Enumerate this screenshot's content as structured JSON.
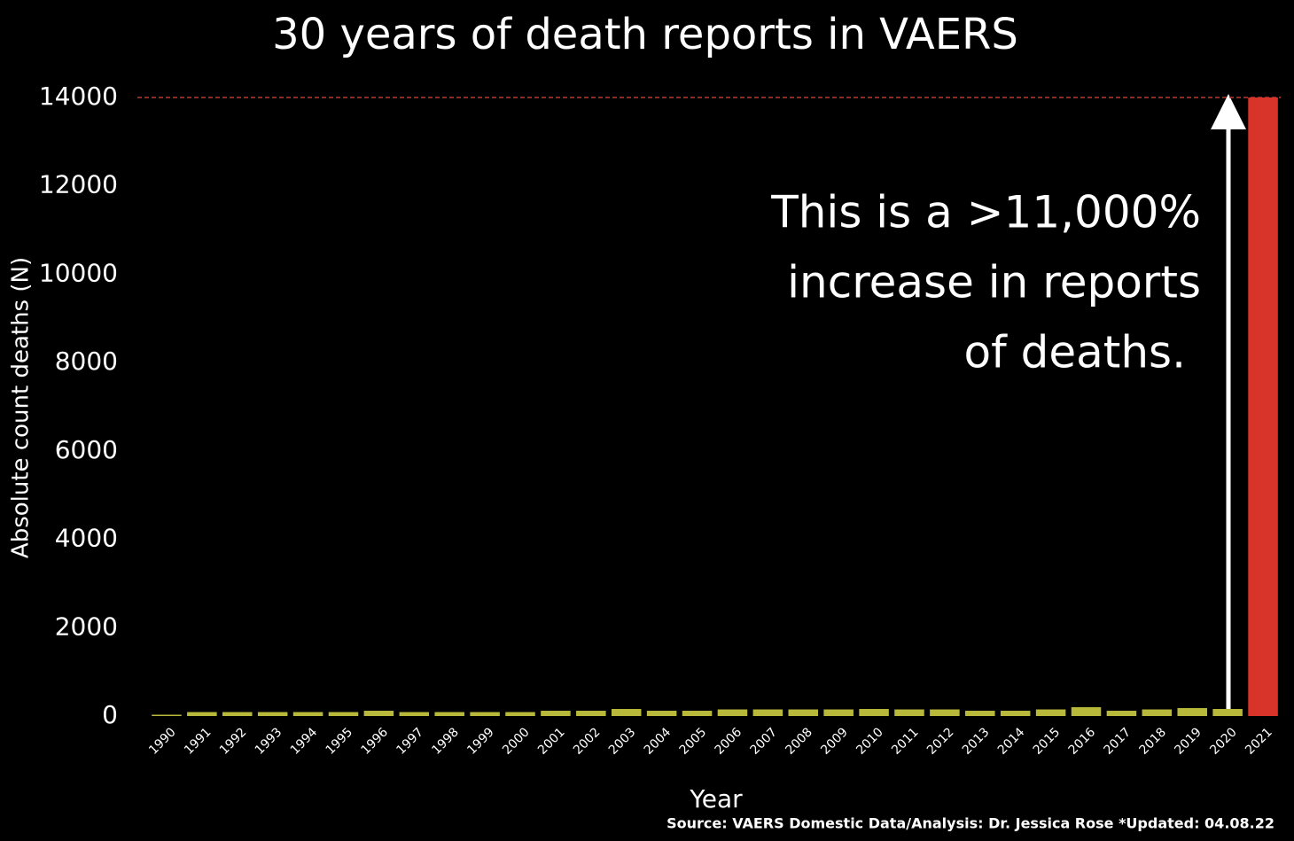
{
  "chart_data": {
    "type": "bar",
    "title": "30 years of death reports in VAERS",
    "y_label": "Absolute count deaths (N)",
    "x_label": "Year",
    "source": "Source: VAERS Domestic Data/Analysis: Dr. Jessica Rose *Updated: 04.08.22",
    "annotation": [
      "This is a >11,000%",
      "increase in reports",
      "of deaths."
    ],
    "categories": [
      "1990",
      "1991",
      "1992",
      "1993",
      "1994",
      "1995",
      "1996",
      "1997",
      "1998",
      "1999",
      "2000",
      "2001",
      "2002",
      "2003",
      "2004",
      "2005",
      "2006",
      "2007",
      "2008",
      "2009",
      "2010",
      "2011",
      "2012",
      "2013",
      "2014",
      "2015",
      "2016",
      "2017",
      "2018",
      "2019",
      "2020",
      "2021"
    ],
    "values": [
      30,
      90,
      90,
      90,
      90,
      90,
      120,
      90,
      90,
      90,
      90,
      120,
      120,
      160,
      120,
      120,
      150,
      150,
      150,
      150,
      160,
      150,
      150,
      120,
      120,
      150,
      200,
      120,
      150,
      180,
      160,
      14000
    ],
    "colors": [
      "#b8b83a",
      "#b8b83a",
      "#b8b83a",
      "#b8b83a",
      "#b8b83a",
      "#b8b83a",
      "#b8b83a",
      "#b8b83a",
      "#b8b83a",
      "#b8b83a",
      "#b8b83a",
      "#b8b83a",
      "#b8b83a",
      "#b8b83a",
      "#b8b83a",
      "#b8b83a",
      "#b8b83a",
      "#b8b83a",
      "#b8b83a",
      "#b8b83a",
      "#b8b83a",
      "#b8b83a",
      "#b8b83a",
      "#b8b83a",
      "#b8b83a",
      "#b8b83a",
      "#b8b83a",
      "#b8b83a",
      "#b8b83a",
      "#b8b83a",
      "#b8b83a",
      "#d9342a"
    ],
    "reference_line": {
      "value": 14000,
      "color": "#c0392b"
    },
    "ylim": [
      0,
      14000
    ],
    "yticks": [
      0,
      2000,
      4000,
      6000,
      8000,
      10000,
      12000,
      14000
    ],
    "grid": false
  }
}
